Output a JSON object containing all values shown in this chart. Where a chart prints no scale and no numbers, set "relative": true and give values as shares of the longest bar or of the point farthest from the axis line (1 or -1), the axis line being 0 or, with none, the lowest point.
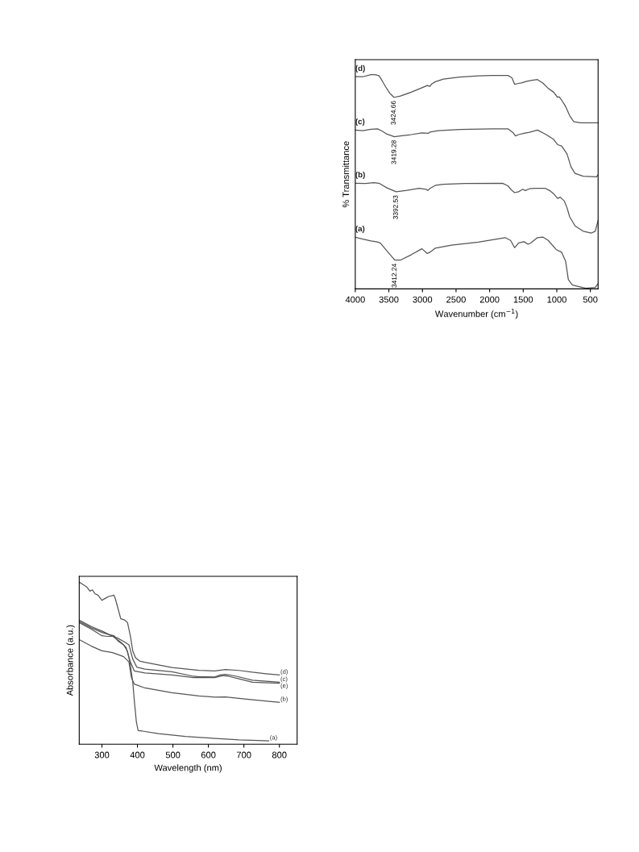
{
  "chart_data": [
    {
      "type": "line",
      "relative": true,
      "xlabel": "Wavenumber (cm$^{−1}$)",
      "ylabel": "% Transmittance",
      "xlim": [
        4000,
        385
      ],
      "xticks": [
        4000,
        3500,
        3000,
        2500,
        2000,
        1500,
        1000,
        500
      ],
      "grid": false,
      "legend": false,
      "series": [
        {
          "name": "(d)",
          "color": "#555555",
          "x": [
            4000,
            3888,
            3768,
            3708,
            3648,
            3608,
            3548,
            3488,
            3425,
            3328,
            3168,
            3008,
            2928,
            2888,
            2868,
            2808,
            2688,
            2448,
            2168,
            1968,
            1728,
            1668,
            1628,
            1588,
            1528,
            1448,
            1388,
            1288,
            1208,
            1128,
            1048,
            988,
            968,
            928,
            868,
            808,
            748,
            648,
            385
          ],
          "values": [
            0.99,
            0.99,
            1.0,
            1.0,
            0.995,
            0.976,
            0.943,
            0.914,
            0.894,
            0.9,
            0.918,
            0.939,
            0.949,
            0.945,
            0.955,
            0.967,
            0.979,
            0.989,
            0.994,
            0.996,
            0.996,
            0.985,
            0.955,
            0.958,
            0.961,
            0.969,
            0.973,
            0.977,
            0.961,
            0.936,
            0.918,
            0.894,
            0.897,
            0.881,
            0.851,
            0.808,
            0.781,
            0.775,
            0.775
          ]
        },
        {
          "name": "(c)",
          "color": "#555555",
          "x": [
            4000,
            3888,
            3768,
            3668,
            3608,
            3528,
            3419,
            3328,
            3168,
            3008,
            2908,
            2888,
            2768,
            2448,
            1968,
            1728,
            1648,
            1616,
            1568,
            1488,
            1408,
            1288,
            1168,
            1048,
            988,
            928,
            848,
            788,
            728,
            608,
            408,
            385
          ],
          "values": [
            0.741,
            0.738,
            0.745,
            0.747,
            0.738,
            0.722,
            0.71,
            0.714,
            0.72,
            0.728,
            0.726,
            0.732,
            0.738,
            0.744,
            0.747,
            0.747,
            0.728,
            0.714,
            0.72,
            0.726,
            0.731,
            0.741,
            0.722,
            0.698,
            0.673,
            0.667,
            0.63,
            0.569,
            0.539,
            0.526,
            0.523,
            0.533
          ]
        },
        {
          "name": "(b)",
          "color": "#555555",
          "x": [
            4000,
            3848,
            3728,
            3648,
            3528,
            3393,
            3248,
            3048,
            2948,
            2920,
            2888,
            2808,
            2688,
            2368,
            1808,
            1728,
            1668,
            1628,
            1568,
            1508,
            1468,
            1408,
            1328,
            1248,
            1168,
            1108,
            1048,
            988,
            948,
            888,
            848,
            808,
            728,
            608,
            488,
            428,
            385
          ],
          "values": [
            0.493,
            0.492,
            0.496,
            0.493,
            0.471,
            0.453,
            0.459,
            0.469,
            0.465,
            0.459,
            0.469,
            0.483,
            0.488,
            0.492,
            0.493,
            0.481,
            0.459,
            0.449,
            0.453,
            0.465,
            0.459,
            0.467,
            0.469,
            0.469,
            0.469,
            0.459,
            0.444,
            0.422,
            0.428,
            0.41,
            0.379,
            0.336,
            0.294,
            0.269,
            0.26,
            0.269,
            0.318
          ]
        },
        {
          "name": "(a)",
          "color": "#555555",
          "x": [
            4000,
            3888,
            3768,
            3688,
            3628,
            3528,
            3412,
            3328,
            3168,
            3008,
            2928,
            2888,
            2808,
            2568,
            2168,
            1768,
            1688,
            1628,
            1568,
            1488,
            1428,
            1388,
            1288,
            1208,
            1128,
            1008,
            928,
            868,
            828,
            768,
            568,
            428,
            385
          ],
          "values": [
            0.241,
            0.232,
            0.224,
            0.22,
            0.214,
            0.177,
            0.134,
            0.134,
            0.159,
            0.187,
            0.165,
            0.171,
            0.19,
            0.204,
            0.218,
            0.239,
            0.226,
            0.192,
            0.214,
            0.22,
            0.208,
            0.214,
            0.239,
            0.242,
            0.226,
            0.183,
            0.171,
            0.128,
            0.043,
            0.018,
            0.003,
            0.006,
            0.024
          ]
        }
      ],
      "annotations": [
        {
          "text": "3424.66",
          "x": 3425,
          "y": 0.894
        },
        {
          "text": "3419.28",
          "x": 3419,
          "y": 0.71
        },
        {
          "text": "3392.53",
          "x": 3393,
          "y": 0.453
        },
        {
          "text": "3412.24",
          "x": 3412,
          "y": 0.134
        }
      ]
    },
    {
      "type": "line",
      "relative": true,
      "xlabel": "Wavelength (nm)",
      "ylabel": "Absorbance (a.u.)",
      "xlim": [
        236,
        850
      ],
      "xticks": [
        300,
        400,
        500,
        600,
        700,
        800
      ],
      "grid": false,
      "legend": false,
      "series": [
        {
          "name": "(d)",
          "color": "#555555",
          "x": [
            236,
            247,
            258,
            266,
            273,
            281,
            289,
            300,
            308,
            319,
            327,
            334,
            338,
            345,
            353,
            364,
            372,
            380,
            387,
            395,
            406,
            421,
            459,
            497,
            573,
            618,
            648,
            686,
            724,
            762,
            800
          ],
          "values": [
            1.0,
            0.984,
            0.968,
            0.944,
            0.952,
            0.927,
            0.919,
            0.887,
            0.898,
            0.911,
            0.915,
            0.919,
            0.895,
            0.839,
            0.774,
            0.766,
            0.75,
            0.669,
            0.573,
            0.532,
            0.513,
            0.505,
            0.489,
            0.473,
            0.456,
            0.452,
            0.46,
            0.455,
            0.444,
            0.435,
            0.427
          ]
        },
        {
          "name": "(c)",
          "color": "#555555",
          "x": [
            236,
            270,
            300,
            330,
            345,
            361,
            376,
            387,
            398,
            421,
            497,
            558,
            573,
            618,
            633,
            648,
            679,
            724,
            800
          ],
          "values": [
            0.758,
            0.718,
            0.689,
            0.669,
            0.653,
            0.634,
            0.613,
            0.524,
            0.476,
            0.463,
            0.447,
            0.419,
            0.416,
            0.415,
            0.427,
            0.431,
            0.419,
            0.395,
            0.382
          ]
        },
        {
          "name": "(e)",
          "color": "#555555",
          "x": [
            236,
            270,
            300,
            315,
            330,
            353,
            368,
            380,
            391,
            421,
            497,
            558,
            618,
            641,
            656,
            686,
            724,
            800
          ],
          "values": [
            0.75,
            0.71,
            0.669,
            0.665,
            0.666,
            0.629,
            0.597,
            0.508,
            0.452,
            0.44,
            0.427,
            0.411,
            0.411,
            0.423,
            0.419,
            0.403,
            0.382,
            0.376
          ]
        },
        {
          "name": "(b)",
          "color": "#555555",
          "x": [
            236,
            270,
            300,
            330,
            361,
            376,
            383,
            391,
            421,
            497,
            573,
            618,
            648,
            724,
            800
          ],
          "values": [
            0.645,
            0.605,
            0.576,
            0.565,
            0.54,
            0.508,
            0.411,
            0.371,
            0.347,
            0.318,
            0.298,
            0.29,
            0.292,
            0.274,
            0.258
          ]
        },
        {
          "name": "(a)",
          "color": "#555555",
          "x": [
            236,
            270,
            300,
            323,
            334,
            345,
            361,
            372,
            380,
            387,
            392,
            397,
            402,
            414,
            459,
            535,
            611,
            686,
            770
          ],
          "values": [
            0.766,
            0.726,
            0.698,
            0.673,
            0.669,
            0.637,
            0.613,
            0.573,
            0.492,
            0.379,
            0.25,
            0.137,
            0.084,
            0.081,
            0.065,
            0.048,
            0.037,
            0.027,
            0.021
          ]
        }
      ]
    }
  ]
}
